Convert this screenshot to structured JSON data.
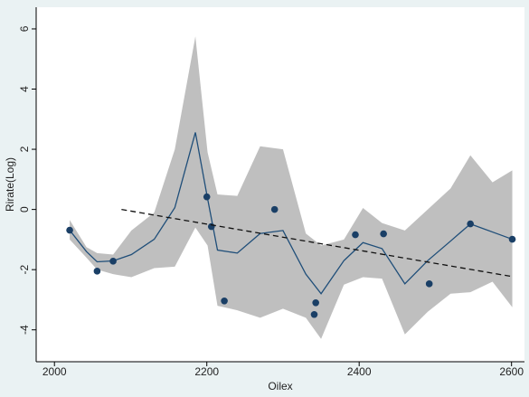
{
  "chart_data": {
    "type": "scatter",
    "x_label": "Oilex",
    "y_label": "Rirate(Log)",
    "xlim": [
      1976,
      2617
    ],
    "ylim": [
      -5.06,
      6.72
    ],
    "xticks": [
      2000,
      2200,
      2400,
      2600
    ],
    "yticks": [
      -4,
      -2,
      0,
      2,
      4,
      6
    ],
    "series": [
      {
        "type": "band",
        "color": "#b4b4b4",
        "x": [
          2020,
          2042,
          2056,
          2077,
          2101,
          2131,
          2158,
          2185,
          2201,
          2214,
          2240,
          2270,
          2300,
          2330,
          2350,
          2380,
          2405,
          2430,
          2460,
          2490,
          2520,
          2546,
          2575,
          2601
        ],
        "upper": [
          -0.35,
          -1.25,
          -1.45,
          -1.5,
          -0.7,
          -0.1,
          2.0,
          5.75,
          1.9,
          0.5,
          0.45,
          2.1,
          2.0,
          -0.8,
          -1.2,
          -1.0,
          0.05,
          -0.45,
          -0.7,
          0.0,
          0.7,
          1.8,
          0.9,
          1.3
        ],
        "lower": [
          -1.0,
          -1.6,
          -2.0,
          -2.15,
          -2.25,
          -1.95,
          -1.9,
          -0.6,
          -1.2,
          -3.2,
          -3.35,
          -3.6,
          -3.3,
          -3.6,
          -4.3,
          -2.5,
          -2.25,
          -2.3,
          -4.15,
          -3.4,
          -2.8,
          -2.75,
          -2.4,
          -3.25
        ]
      },
      {
        "type": "line",
        "color": "#1f4e79",
        "x": [
          2020,
          2042,
          2056,
          2077,
          2101,
          2131,
          2158,
          2185,
          2201,
          2214,
          2240,
          2270,
          2300,
          2330,
          2350,
          2380,
          2405,
          2430,
          2460,
          2490,
          2520,
          2546,
          2575,
          2601
        ],
        "values": [
          -0.69,
          -1.4,
          -1.74,
          -1.71,
          -1.5,
          -0.99,
          0.06,
          2.56,
          0.36,
          -1.35,
          -1.45,
          -0.8,
          -0.7,
          -2.15,
          -2.8,
          -1.7,
          -1.1,
          -1.3,
          -2.47,
          -1.7,
          -1.05,
          -0.48,
          -0.75,
          -0.99
        ]
      },
      {
        "type": "points",
        "color": "#1a3f66",
        "x": [
          2020,
          2056,
          2077,
          2200,
          2206,
          2223,
          2289,
          2343,
          2341,
          2395,
          2432,
          2492,
          2546,
          2601
        ],
        "values": [
          -0.69,
          -2.05,
          -1.72,
          0.42,
          -0.57,
          -3.04,
          0.0,
          -3.1,
          -3.49,
          -0.84,
          -0.81,
          -2.47,
          -0.48,
          -0.99
        ]
      },
      {
        "type": "line",
        "color": "#111111",
        "dashed": true,
        "x": [
          2088,
          2601
        ],
        "values": [
          0,
          -2.23
        ]
      }
    ]
  }
}
